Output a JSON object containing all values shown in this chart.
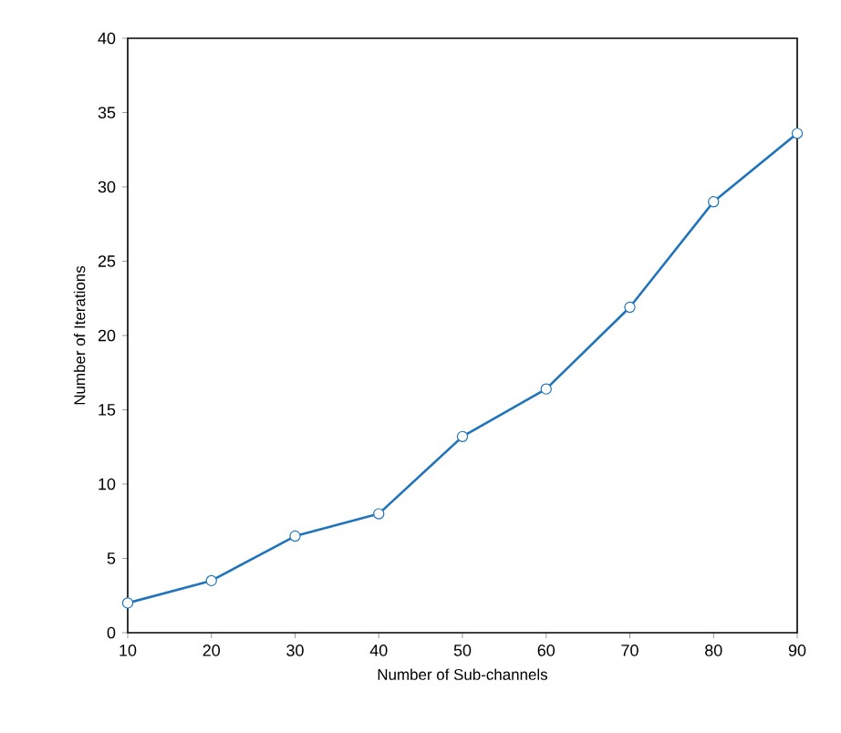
{
  "chart_data": {
    "type": "line",
    "xlabel": "Number of Sub-channels",
    "ylabel": "Number of  Iterations",
    "x": [
      10,
      20,
      30,
      40,
      50,
      60,
      70,
      80,
      90
    ],
    "series": [
      {
        "color": "#1f74bb",
        "values": [
          2,
          3.5,
          6.5,
          8,
          13.2,
          16.4,
          21.9,
          29,
          33.6
        ]
      }
    ],
    "xlim": [
      10,
      90
    ],
    "xticks": [
      10,
      20,
      30,
      40,
      50,
      60,
      70,
      80,
      90
    ],
    "ylim": [
      0,
      40
    ],
    "yticks": [
      0,
      5,
      10,
      15,
      20,
      25,
      30,
      35,
      40
    ],
    "marker": "circle",
    "line_style": "solid"
  }
}
